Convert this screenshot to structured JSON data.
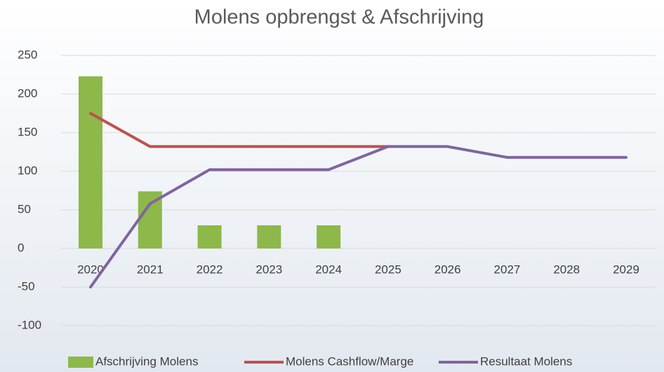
{
  "chart_data": {
    "type": "bar_line",
    "title": "Molens opbrengst & Afschrijving",
    "categories": [
      "2020",
      "2021",
      "2022",
      "2023",
      "2024",
      "2025",
      "2026",
      "2027",
      "2028",
      "2029"
    ],
    "series": [
      {
        "name": "Afschrijving Molens",
        "type": "bar",
        "color": "#8db84a",
        "values": [
          223,
          74,
          30,
          30,
          30,
          null,
          null,
          null,
          null,
          null
        ]
      },
      {
        "name": "Molens Cashflow/Marge",
        "type": "line",
        "color": "#c0504d",
        "values": [
          175,
          132,
          132,
          132,
          132,
          132,
          null,
          null,
          null,
          null
        ]
      },
      {
        "name": "Resultaat Molens",
        "type": "line",
        "color": "#8064a2",
        "values": [
          -50,
          58,
          102,
          102,
          102,
          132,
          132,
          118,
          118,
          118
        ]
      }
    ],
    "ylim": [
      -100,
      250
    ],
    "yticks": [
      -100,
      -50,
      0,
      50,
      100,
      150,
      200,
      250
    ],
    "grid": true,
    "legend": "bottom"
  }
}
